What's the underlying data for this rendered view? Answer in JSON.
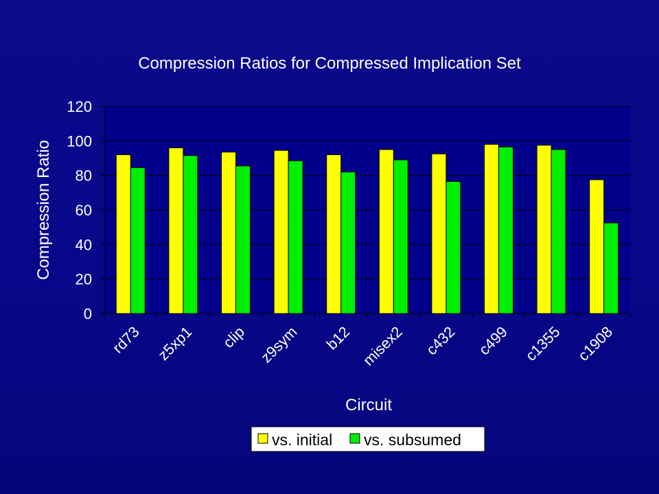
{
  "chart_data": {
    "type": "bar",
    "title": "Compression Ratios for Compressed Implication Set",
    "xlabel": "Circuit",
    "ylabel": "Compression Ratio",
    "ylim": [
      0,
      120
    ],
    "yticks": [
      0,
      20,
      40,
      60,
      80,
      100,
      120
    ],
    "grid": true,
    "legend_position": "bottom",
    "categories": [
      "rd73",
      "z5xp1",
      "clip",
      "z9sym",
      "b12",
      "misex2",
      "c432",
      "c499",
      "c1355",
      "c1908"
    ],
    "series": [
      {
        "name": "vs. initial",
        "color": "#ffff00",
        "values": [
          92,
          96,
          93.5,
          94.5,
          92,
          95,
          92.5,
          98,
          97.5,
          77.5
        ]
      },
      {
        "name": "vs. subsumed",
        "color": "#00ee00",
        "values": [
          84.5,
          91.5,
          85.5,
          88.5,
          82,
          89,
          76.5,
          96.5,
          95,
          52.5
        ]
      }
    ]
  },
  "colors": {
    "background": "#0a0a8a",
    "plot_area": "#00008b",
    "text": "#ffffff"
  }
}
